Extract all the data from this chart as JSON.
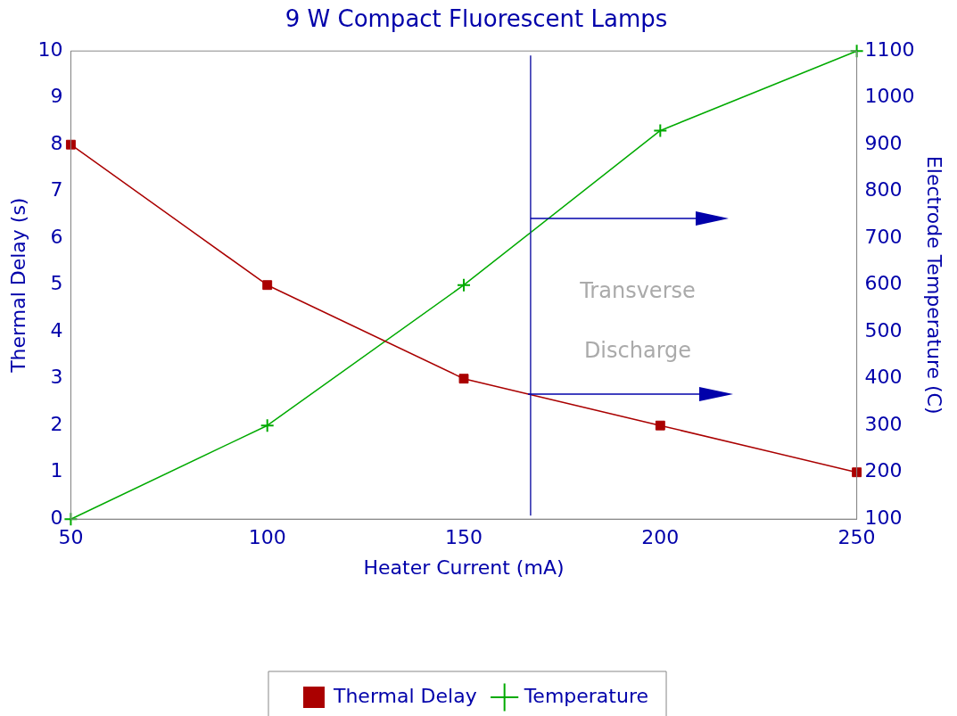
{
  "chart_data": {
    "type": "line",
    "title": "9 W Compact Fluorescent Lamps",
    "xlabel": "Heater Current (mA)",
    "ylabel": "Thermal Delay (s)",
    "y2label": "Electrode Temperature (C)",
    "x": [
      50,
      100,
      150,
      200,
      250
    ],
    "series": [
      {
        "name": "Thermal Delay",
        "color": "#aa0000",
        "marker": "square",
        "values": [
          8,
          5,
          3,
          2,
          1
        ]
      },
      {
        "name": "Temperature",
        "color": "#00aa00",
        "marker": "cross",
        "axis": "y2",
        "values": [
          100,
          300,
          600,
          930,
          1100
        ]
      }
    ],
    "xlim": [
      50,
      250
    ],
    "xticks": [
      50,
      100,
      150,
      200,
      250
    ],
    "ylim": [
      0,
      10
    ],
    "yticks": [
      0,
      1,
      2,
      3,
      4,
      5,
      6,
      7,
      8,
      9,
      10
    ],
    "y2lim": [
      100,
      1100
    ],
    "y2ticks": [
      100,
      200,
      300,
      400,
      500,
      600,
      700,
      800,
      900,
      1000,
      1100
    ],
    "ref_lines": [
      {
        "axis": "x",
        "value": 167,
        "color": "#2222aa"
      }
    ],
    "annotations": [
      "Transverse",
      "Discharge"
    ],
    "legend": "bottom",
    "grid": false
  }
}
